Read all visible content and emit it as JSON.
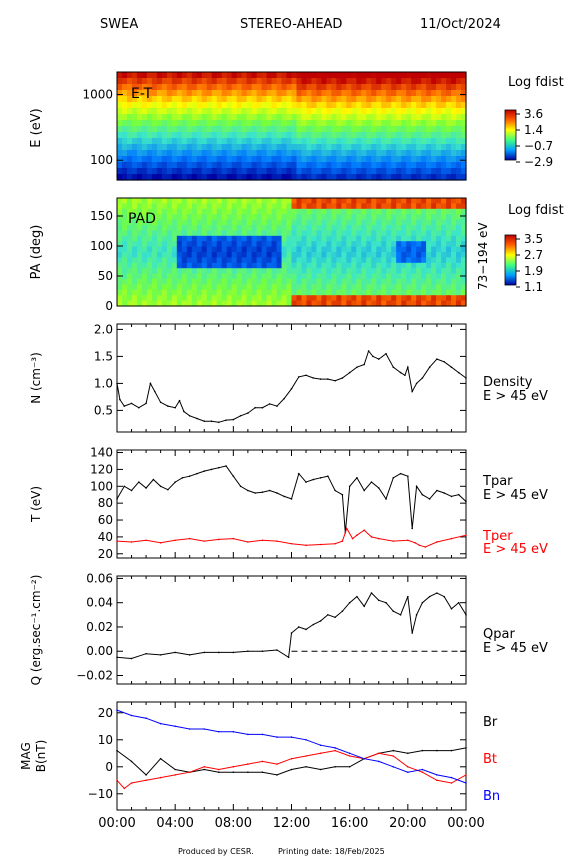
{
  "header": {
    "instrument": "SWEA",
    "spacecraft": "STEREO-AHEAD",
    "date": "11/Oct/2024"
  },
  "footer": {
    "produced_by": "Produced by CESR.",
    "printing_date": "Printing date: 18/Feb/2025"
  },
  "colors": {
    "black": "#000000",
    "red": "#ff0000",
    "blue": "#0000ff",
    "dashed": "#000000"
  },
  "time_axis": {
    "ticks": [
      "00:00",
      "04:00",
      "08:00",
      "12:00",
      "16:00",
      "20:00",
      "00:00"
    ],
    "range_hours": [
      0,
      24
    ]
  },
  "chart_data": [
    {
      "type": "heatmap",
      "panel": "energy-time",
      "panel_label": "E-T",
      "ylabel": "E (eV)",
      "yscale": "log",
      "ylim": [
        50,
        2200
      ],
      "yticks": [
        {
          "value": 100,
          "label": "100"
        },
        {
          "value": 1000,
          "label": "1000"
        }
      ],
      "colorbar": {
        "title": "Log fdist",
        "ticks": [
          "3.6",
          "1.4",
          "−0.7",
          "−2.9"
        ]
      }
    },
    {
      "type": "heatmap",
      "panel": "pitch-angle",
      "panel_label": "PAD",
      "ylabel": "PA (deg)",
      "ylim": [
        0,
        180
      ],
      "yticks": [
        {
          "value": 0,
          "label": "0"
        },
        {
          "value": 50,
          "label": "50"
        },
        {
          "value": 100,
          "label": "100"
        },
        {
          "value": 150,
          "label": "150"
        }
      ],
      "energy_range": "73−194 eV",
      "colorbar": {
        "title": "Log fdist",
        "ticks": [
          "3.5",
          "2.7",
          "1.9",
          "1.1"
        ]
      }
    },
    {
      "type": "line",
      "panel": "density",
      "ylabel": "N (cm⁻³)",
      "ylim": [
        0.1,
        2.1
      ],
      "yticks": [
        {
          "value": 0.5,
          "label": "0.5"
        },
        {
          "value": 1.0,
          "label": "1.0"
        },
        {
          "value": 1.5,
          "label": "1.5"
        },
        {
          "value": 2.0,
          "label": "2.0"
        }
      ],
      "labels": [
        {
          "text": "Density",
          "color": "#000000"
        },
        {
          "text": "E > 45 eV",
          "color": "#000000"
        }
      ],
      "series": [
        {
          "color": "#000000",
          "x": [
            0,
            0.2,
            0.5,
            1,
            1.5,
            2,
            2.3,
            2.6,
            3,
            3.5,
            4,
            4.3,
            4.6,
            5,
            5.5,
            6,
            6.5,
            7,
            7.5,
            8,
            8.5,
            9,
            9.5,
            10,
            10.5,
            11,
            11.5,
            12,
            12.5,
            13,
            13.5,
            14,
            14.5,
            15,
            15.5,
            16,
            16.5,
            17,
            17.3,
            17.6,
            18,
            18.5,
            19,
            19.5,
            19.8,
            20,
            20.3,
            20.6,
            21,
            21.5,
            22,
            22.5,
            23,
            23.5,
            24
          ],
          "y": [
            1.0,
            0.7,
            0.58,
            0.63,
            0.55,
            0.63,
            1.0,
            0.85,
            0.65,
            0.58,
            0.55,
            0.68,
            0.48,
            0.4,
            0.35,
            0.3,
            0.3,
            0.28,
            0.32,
            0.33,
            0.4,
            0.45,
            0.55,
            0.55,
            0.62,
            0.58,
            0.72,
            0.9,
            1.12,
            1.15,
            1.1,
            1.08,
            1.08,
            1.05,
            1.1,
            1.2,
            1.3,
            1.35,
            1.6,
            1.5,
            1.45,
            1.55,
            1.3,
            1.2,
            1.15,
            1.3,
            0.85,
            1.0,
            1.1,
            1.3,
            1.45,
            1.4,
            1.3,
            1.2,
            1.1
          ]
        }
      ]
    },
    {
      "type": "line",
      "panel": "temperature",
      "ylabel": "T (eV)",
      "ylim": [
        15,
        143
      ],
      "yticks": [
        {
          "value": 20,
          "label": "20"
        },
        {
          "value": 40,
          "label": "40"
        },
        {
          "value": 60,
          "label": "60"
        },
        {
          "value": 80,
          "label": "80"
        },
        {
          "value": 100,
          "label": "100"
        },
        {
          "value": 120,
          "label": "120"
        },
        {
          "value": 140,
          "label": "140"
        }
      ],
      "labels": [
        {
          "text": "Tpar",
          "color": "#000000"
        },
        {
          "text": "E > 45 eV",
          "color": "#000000"
        },
        {
          "text": "Tper",
          "color": "#ff0000"
        },
        {
          "text": "E > 45 eV",
          "color": "#ff0000"
        }
      ],
      "series": [
        {
          "name": "Tpar",
          "color": "#000000",
          "x": [
            0,
            0.5,
            1,
            1.5,
            2,
            2.5,
            3,
            3.5,
            4,
            4.5,
            5,
            5.5,
            6,
            6.5,
            7,
            7.5,
            8,
            8.5,
            9,
            9.5,
            10,
            10.5,
            11,
            11.5,
            12,
            12.5,
            13,
            13.5,
            14,
            14.5,
            15,
            15.5,
            15.7,
            16,
            16.5,
            17,
            17.5,
            18,
            18.5,
            19,
            19.5,
            20,
            20.3,
            20.6,
            21,
            21.5,
            22,
            22.5,
            23,
            23.5,
            24
          ],
          "y": [
            85,
            100,
            95,
            105,
            98,
            108,
            100,
            96,
            105,
            110,
            112,
            115,
            118,
            120,
            122,
            124,
            112,
            100,
            95,
            92,
            93,
            95,
            92,
            88,
            85,
            115,
            105,
            108,
            110,
            112,
            95,
            90,
            45,
            100,
            110,
            95,
            105,
            98,
            85,
            110,
            115,
            112,
            50,
            100,
            90,
            85,
            95,
            92,
            88,
            90,
            82
          ]
        },
        {
          "name": "Tper",
          "color": "#ff0000",
          "x": [
            0,
            1,
            2,
            3,
            4,
            5,
            6,
            7,
            8,
            9,
            10,
            11,
            12,
            13,
            14,
            15,
            15.5,
            15.8,
            16.2,
            16.5,
            17,
            17.5,
            18,
            19,
            20,
            20.5,
            20.8,
            21.2,
            22,
            23,
            24
          ],
          "y": [
            35,
            34,
            36,
            33,
            36,
            38,
            35,
            37,
            38,
            34,
            36,
            35,
            32,
            30,
            31,
            32,
            35,
            50,
            38,
            42,
            48,
            40,
            38,
            35,
            36,
            33,
            30,
            28,
            34,
            38,
            42
          ]
        }
      ]
    },
    {
      "type": "line",
      "panel": "heat-flux",
      "ylabel": "Q (erg.sec⁻¹.cm⁻²)",
      "ylim": [
        -0.027,
        0.062
      ],
      "yticks": [
        {
          "value": -0.02,
          "label": "−0.02"
        },
        {
          "value": 0.0,
          "label": "0.00"
        },
        {
          "value": 0.02,
          "label": "0.02"
        },
        {
          "value": 0.04,
          "label": "0.04"
        },
        {
          "value": 0.06,
          "label": "0.06"
        }
      ],
      "labels": [
        {
          "text": "Qpar",
          "color": "#000000"
        },
        {
          "text": "E > 45 eV",
          "color": "#000000"
        }
      ],
      "zero_line": {
        "value": 0,
        "from_hours": 12,
        "to_hours": 24,
        "dashed": true
      },
      "series": [
        {
          "color": "#000000",
          "x": [
            0,
            1,
            2,
            3,
            4,
            5,
            6,
            7,
            8,
            9,
            10,
            11,
            11.8,
            12,
            12.5,
            13,
            13.5,
            14,
            14.5,
            15,
            15.5,
            16,
            16.5,
            17,
            17.5,
            18,
            18.5,
            19,
            19.5,
            20,
            20.3,
            20.6,
            21,
            21.5,
            22,
            22.5,
            23,
            23.5,
            24
          ],
          "y": [
            -0.005,
            -0.006,
            -0.002,
            -0.003,
            -0.001,
            -0.003,
            -0.001,
            -0.001,
            -0.001,
            0.0,
            0.0,
            0.001,
            -0.005,
            0.015,
            0.02,
            0.018,
            0.022,
            0.025,
            0.03,
            0.028,
            0.033,
            0.04,
            0.045,
            0.037,
            0.048,
            0.042,
            0.04,
            0.033,
            0.03,
            0.045,
            0.015,
            0.03,
            0.04,
            0.045,
            0.048,
            0.045,
            0.035,
            0.04,
            0.03
          ]
        }
      ]
    },
    {
      "type": "line",
      "panel": "magnetic-field",
      "ylabel": "MAG",
      "ylabel2": "B(nT)",
      "ylim": [
        -16,
        24
      ],
      "yticks": [
        {
          "value": -10,
          "label": "−10"
        },
        {
          "value": 0,
          "label": "0"
        },
        {
          "value": 10,
          "label": "10"
        },
        {
          "value": 20,
          "label": "20"
        }
      ],
      "labels": [
        {
          "text": "Br",
          "color": "#000000"
        },
        {
          "text": "Bt",
          "color": "#ff0000"
        },
        {
          "text": "Bn",
          "color": "#0000ff"
        }
      ],
      "series": [
        {
          "name": "Br",
          "color": "#000000",
          "x": [
            0,
            1,
            2,
            3,
            4,
            5,
            6,
            7,
            8,
            9,
            10,
            11,
            12,
            13,
            14,
            15,
            16,
            17,
            18,
            19,
            20,
            21,
            22,
            23,
            24
          ],
          "y": [
            6,
            2,
            -3,
            3,
            -1,
            -2,
            -1,
            -2,
            -2,
            -2,
            -2,
            -3,
            -1,
            0,
            -1,
            0,
            0,
            3,
            5,
            6,
            5,
            6,
            6,
            6,
            7
          ]
        },
        {
          "name": "Bt",
          "color": "#ff0000",
          "x": [
            0,
            0.5,
            1,
            2,
            3,
            4,
            5,
            6,
            7,
            8,
            9,
            10,
            11,
            12,
            13,
            14,
            15,
            16,
            17,
            18,
            19,
            20,
            21,
            22,
            23,
            24
          ],
          "y": [
            -5,
            -8,
            -6,
            -5,
            -4,
            -3,
            -2,
            0,
            -1,
            0,
            1,
            2,
            1,
            3,
            4,
            5,
            6,
            4,
            3,
            5,
            4,
            0,
            -2,
            -5,
            -6,
            -3
          ]
        },
        {
          "name": "Bn",
          "color": "#0000ff",
          "x": [
            0,
            1,
            2,
            3,
            4,
            5,
            6,
            7,
            8,
            9,
            10,
            11,
            12,
            13,
            14,
            15,
            16,
            17,
            18,
            19,
            20,
            21,
            22,
            23,
            24
          ],
          "y": [
            21,
            19,
            18,
            16,
            15,
            14,
            14,
            13,
            13,
            12,
            12,
            11,
            11,
            10,
            8,
            7,
            5,
            3,
            2,
            0,
            -2,
            -1,
            -3,
            -4,
            -6
          ]
        }
      ]
    }
  ]
}
